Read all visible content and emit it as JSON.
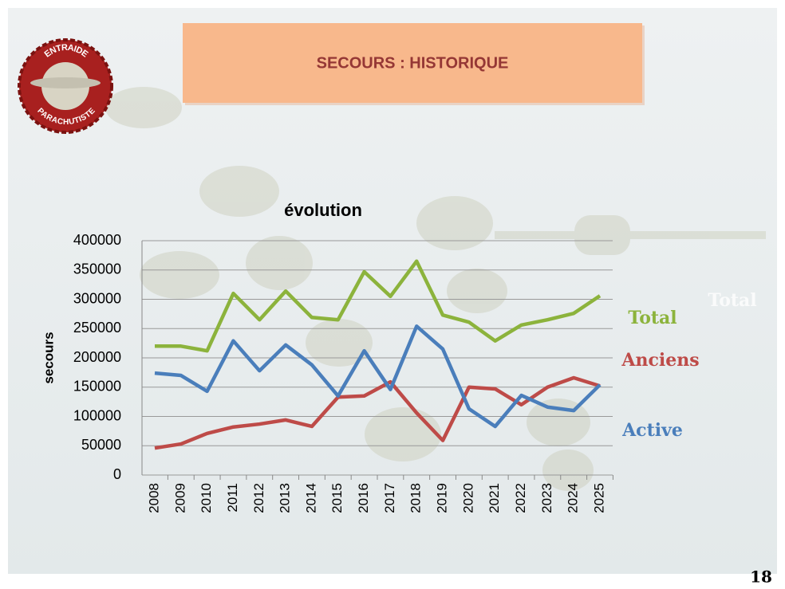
{
  "slide": {
    "title": "SECOURS : HISTORIQUE",
    "page_number": "18",
    "logo_top": "ENTRAIDE",
    "logo_bottom": "PARACHUTISTE",
    "watermark": "Total"
  },
  "chart_data": {
    "type": "line",
    "title": "évolution",
    "y_label": "secours",
    "categories": [
      "2008",
      "2009",
      "2010",
      "2011",
      "2012",
      "2013",
      "2014",
      "2015",
      "2016",
      "2017",
      "2018",
      "2019",
      "2020",
      "2021",
      "2022",
      "2023",
      "2024",
      "2025"
    ],
    "series": [
      {
        "name": "Total",
        "color": "#8cb33c",
        "values": [
          220000,
          220000,
          212000,
          310000,
          265000,
          314000,
          269000,
          265000,
          347000,
          305000,
          365000,
          273000,
          261000,
          229000,
          256000,
          265000,
          276000,
          306000
        ]
      },
      {
        "name": "Anciens",
        "color": "#be4b48",
        "values": [
          46000,
          53000,
          71000,
          82000,
          87000,
          94000,
          83000,
          133000,
          135000,
          159000,
          106000,
          59000,
          150000,
          147000,
          120000,
          150000,
          166000,
          152000
        ]
      },
      {
        "name": "Active",
        "color": "#4a7ebb",
        "values": [
          174000,
          170000,
          143000,
          229000,
          178000,
          222000,
          188000,
          135000,
          212000,
          146000,
          254000,
          215000,
          113000,
          83000,
          136000,
          116000,
          110000,
          154000
        ]
      }
    ],
    "ylim": [
      0,
      400000
    ],
    "yticks": [
      0,
      50000,
      100000,
      150000,
      200000,
      250000,
      300000,
      350000,
      400000
    ],
    "grid": true
  }
}
